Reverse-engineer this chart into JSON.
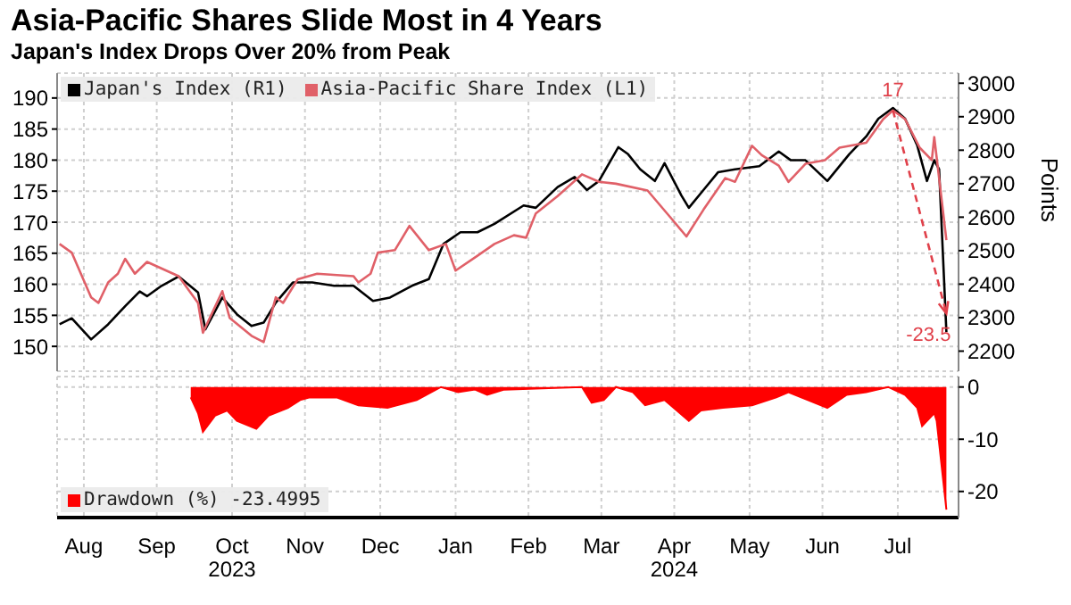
{
  "chart_data": [
    {
      "type": "line",
      "title": "Asia-Pacific Shares Slide Most in 4 Years",
      "subtitle": "Japan's Index Drops Over 20% from Peak",
      "y2label": "Points",
      "legend": "top left",
      "grid": true,
      "tick_labels": "y",
      "xlim": [
        "2023-08-05",
        "2024-08-10"
      ],
      "ylim": [
        146,
        194
      ],
      "yticks": [
        150,
        155,
        160,
        165,
        170,
        175,
        180,
        185,
        190
      ],
      "y2lim": [
        2140,
        3030
      ],
      "y2ticks": [
        2200,
        2300,
        2400,
        2500,
        2600,
        2700,
        2800,
        2900,
        3000
      ],
      "annotations": [
        {
          "text": "17",
          "x": "2024-07-14",
          "y": 188.0
        },
        {
          "text": "-23.5",
          "x": "2024-08-05",
          "y": 155.3
        }
      ],
      "series": [
        {
          "name": "Japan's Index (R1)",
          "color": "#000000",
          "axis": "y2",
          "x": [
            "2023-08-06",
            "2023-08-11",
            "2023-08-19",
            "2023-08-26",
            "2023-09-02",
            "2023-09-08",
            "2023-09-11",
            "2023-09-17",
            "2023-09-24",
            "2023-10-02",
            "2023-10-05",
            "2023-10-12",
            "2023-10-18",
            "2023-10-24",
            "2023-10-29",
            "2023-11-03",
            "2023-11-10",
            "2023-11-18",
            "2023-11-27",
            "2023-12-05",
            "2023-12-13",
            "2023-12-20",
            "2023-12-29",
            "2024-01-05",
            "2024-01-11",
            "2024-01-18",
            "2024-01-25",
            "2024-02-01",
            "2024-02-13",
            "2024-02-18",
            "2024-02-27",
            "2024-03-05",
            "2024-03-10",
            "2024-03-15",
            "2024-03-23",
            "2024-03-27",
            "2024-04-01",
            "2024-04-07",
            "2024-04-11",
            "2024-04-18",
            "2024-04-21",
            "2024-04-27",
            "2024-05-03",
            "2024-05-10",
            "2024-05-20",
            "2024-05-28",
            "2024-06-02",
            "2024-06-08",
            "2024-06-17",
            "2024-06-26",
            "2024-07-03",
            "2024-07-08",
            "2024-07-14",
            "2024-07-19",
            "2024-07-24",
            "2024-07-28",
            "2024-07-31",
            "2024-08-02",
            "2024-08-05"
          ],
          "values": [
            2280,
            2298,
            2235,
            2280,
            2334,
            2378,
            2364,
            2395,
            2423,
            2375,
            2265,
            2360,
            2310,
            2275,
            2285,
            2345,
            2405,
            2405,
            2395,
            2395,
            2350,
            2360,
            2395,
            2415,
            2520,
            2555,
            2555,
            2580,
            2635,
            2628,
            2690,
            2720,
            2681,
            2708,
            2809,
            2788,
            2743,
            2708,
            2761,
            2664,
            2628,
            2681,
            2734,
            2743,
            2752,
            2796,
            2770,
            2770,
            2708,
            2788,
            2841,
            2894,
            2926,
            2894,
            2814,
            2708,
            2770,
            2743,
            2257
          ]
        },
        {
          "name": "Asia-Pacific Share Index (L1)",
          "color": "#e06068",
          "x": [
            "2023-08-06",
            "2023-08-11",
            "2023-08-19",
            "2023-08-22",
            "2023-08-26",
            "2023-08-30",
            "2023-09-02",
            "2023-09-06",
            "2023-09-11",
            "2023-09-24",
            "2023-10-02",
            "2023-10-04",
            "2023-10-12",
            "2023-10-15",
            "2023-10-24",
            "2023-10-29",
            "2023-11-03",
            "2023-11-06",
            "2023-11-12",
            "2023-11-20",
            "2023-12-05",
            "2023-12-07",
            "2023-12-12",
            "2023-12-15",
            "2023-12-22",
            "2023-12-28",
            "2024-01-05",
            "2024-01-12",
            "2024-01-16",
            "2024-01-25",
            "2024-02-01",
            "2024-02-09",
            "2024-02-14",
            "2024-02-18",
            "2024-02-27",
            "2024-03-08",
            "2024-03-15",
            "2024-03-22",
            "2024-04-04",
            "2024-04-14",
            "2024-04-20",
            "2024-04-27",
            "2024-05-06",
            "2024-05-10",
            "2024-05-17",
            "2024-05-21",
            "2024-05-28",
            "2024-06-01",
            "2024-06-08",
            "2024-06-16",
            "2024-06-22",
            "2024-07-03",
            "2024-07-10",
            "2024-07-14",
            "2024-07-19",
            "2024-07-25",
            "2024-07-30",
            "2024-07-31",
            "2024-08-02",
            "2024-08-05"
          ],
          "values": [
            166.5,
            165.1,
            157.9,
            157.0,
            160.3,
            161.7,
            164.1,
            161.7,
            163.6,
            161.3,
            157.0,
            152.2,
            158.9,
            154.6,
            151.7,
            150.7,
            157.9,
            157.0,
            160.8,
            161.7,
            161.3,
            160.3,
            161.7,
            165.1,
            165.5,
            169.4,
            165.5,
            166.5,
            162.2,
            164.6,
            166.5,
            167.9,
            167.5,
            171.4,
            174.2,
            177.7,
            176.5,
            176.2,
            175.1,
            170.5,
            167.7,
            172.0,
            177.1,
            176.5,
            182.3,
            180.8,
            179.1,
            176.5,
            179.4,
            180.0,
            182.0,
            182.8,
            186.6,
            188.0,
            186.6,
            182.0,
            180.0,
            183.7,
            177.1,
            167.1
          ]
        }
      ]
    },
    {
      "type": "area",
      "legend": "bottom left",
      "grid": true,
      "xlim": [
        "2023-08-05",
        "2024-08-10"
      ],
      "xticks": [
        {
          "value": "2023-08-16",
          "label": "Aug"
        },
        {
          "value": "2023-09-15",
          "label": "Sep"
        },
        {
          "value": "2023-10-16",
          "label": "Oct\n2023"
        },
        {
          "value": "2023-11-15",
          "label": "Nov"
        },
        {
          "value": "2023-12-16",
          "label": "Dec"
        },
        {
          "value": "2024-01-16",
          "label": "Jan"
        },
        {
          "value": "2024-02-15",
          "label": "Feb"
        },
        {
          "value": "2024-03-16",
          "label": "Mar"
        },
        {
          "value": "2024-04-15",
          "label": "Apr\n2024"
        },
        {
          "value": "2024-05-16",
          "label": "May"
        },
        {
          "value": "2024-06-15",
          "label": "Jun"
        },
        {
          "value": "2024-07-16",
          "label": "Jul"
        }
      ],
      "y2lim": [
        -25,
        2
      ],
      "y2ticks": [
        0,
        -10,
        -20
      ],
      "series": [
        {
          "name": "Drawdown (%) -23.4995",
          "color": "#ff0000",
          "axis": "y2",
          "x": [
            "2023-09-29",
            "2023-10-02",
            "2023-10-04",
            "2023-10-09",
            "2023-10-14",
            "2023-10-18",
            "2023-10-26",
            "2023-10-31",
            "2023-11-08",
            "2023-11-13",
            "2023-11-17",
            "2023-11-28",
            "2023-12-07",
            "2023-12-19",
            "2023-12-31",
            "2024-01-10",
            "2024-01-17",
            "2024-01-24",
            "2024-01-29",
            "2024-02-05",
            "2024-02-18",
            "2024-03-08",
            "2024-03-12",
            "2024-03-17",
            "2024-03-22",
            "2024-03-29",
            "2024-04-03",
            "2024-04-11",
            "2024-04-21",
            "2024-04-26",
            "2024-05-05",
            "2024-05-17",
            "2024-05-27",
            "2024-06-01",
            "2024-06-09",
            "2024-06-17",
            "2024-06-25",
            "2024-07-03",
            "2024-07-12",
            "2024-07-19",
            "2024-07-24",
            "2024-07-26",
            "2024-07-31",
            "2024-08-01",
            "2024-08-05"
          ],
          "values": [
            -2,
            -5,
            -8.6,
            -5.5,
            -4.5,
            -6.5,
            -8,
            -5.5,
            -4,
            -2.5,
            -2,
            -2,
            -3.5,
            -4,
            -2.5,
            0,
            -1,
            -0.5,
            -1.5,
            -0.5,
            -0.3,
            0,
            -3,
            -2.5,
            0,
            -1,
            -3.5,
            -2.5,
            -6.5,
            -4.5,
            -4,
            -3.5,
            -2,
            -1,
            -2.5,
            -4,
            -1.5,
            -1,
            0,
            -1.5,
            -4,
            -7.5,
            -5,
            -6.5,
            -23.5
          ]
        }
      ]
    }
  ]
}
